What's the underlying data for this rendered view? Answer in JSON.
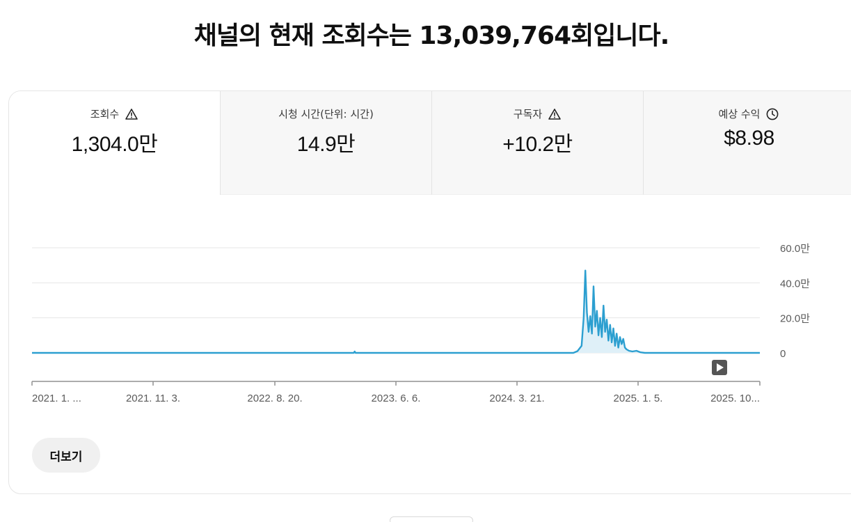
{
  "headline": "채널의 현재 조회수는 13,039,764회입니다.",
  "tabs": [
    {
      "label": "조회수",
      "value": "1,304.0만",
      "icon": "warning-icon"
    },
    {
      "label": "시청 시간(단위: 시간)",
      "value": "14.9만",
      "icon": ""
    },
    {
      "label": "구독자",
      "value": "+10.2만",
      "icon": "warning-icon"
    },
    {
      "label": "예상 수익",
      "value": "$8.98",
      "icon": "clock-icon"
    }
  ],
  "more_button": "더보기",
  "chart_data": {
    "type": "line",
    "y_tick_labels": [
      "60.0만",
      "40.0만",
      "20.0만",
      "0"
    ],
    "y_ticks": [
      600000,
      400000,
      200000,
      0
    ],
    "ylim": [
      0,
      600000
    ],
    "x_tick_labels": [
      "2021. 1. ...",
      "2021. 11. 3.",
      "2022. 8. 20.",
      "2023. 6. 6.",
      "2024. 3. 21.",
      "2025. 1. 5.",
      "2025. 10..."
    ],
    "xlim": [
      "2021-01-01",
      "2025-10-31"
    ],
    "series": [
      {
        "color": "#2c9fd0",
        "points": [
          [
            "2021-01-01",
            0
          ],
          [
            "2023-02-20",
            0
          ],
          [
            "2023-02-22",
            8000
          ],
          [
            "2023-02-24",
            0
          ],
          [
            "2024-08-05",
            0
          ],
          [
            "2024-08-15",
            10000
          ],
          [
            "2024-08-25",
            40000
          ],
          [
            "2024-08-30",
            200000
          ],
          [
            "2024-09-03",
            470000
          ],
          [
            "2024-09-07",
            230000
          ],
          [
            "2024-09-11",
            120000
          ],
          [
            "2024-09-15",
            210000
          ],
          [
            "2024-09-19",
            110000
          ],
          [
            "2024-09-23",
            380000
          ],
          [
            "2024-09-27",
            150000
          ],
          [
            "2024-10-01",
            240000
          ],
          [
            "2024-10-05",
            100000
          ],
          [
            "2024-10-09",
            200000
          ],
          [
            "2024-10-13",
            90000
          ],
          [
            "2024-10-17",
            270000
          ],
          [
            "2024-10-21",
            120000
          ],
          [
            "2024-10-25",
            190000
          ],
          [
            "2024-10-29",
            70000
          ],
          [
            "2024-11-02",
            160000
          ],
          [
            "2024-11-06",
            60000
          ],
          [
            "2024-11-10",
            140000
          ],
          [
            "2024-11-14",
            40000
          ],
          [
            "2024-11-18",
            110000
          ],
          [
            "2024-11-22",
            30000
          ],
          [
            "2024-11-26",
            90000
          ],
          [
            "2024-11-30",
            50000
          ],
          [
            "2024-12-04",
            80000
          ],
          [
            "2024-12-08",
            30000
          ],
          [
            "2024-12-12",
            20000
          ],
          [
            "2024-12-18",
            12000
          ],
          [
            "2024-12-26",
            8000
          ],
          [
            "2025-01-05",
            12000
          ],
          [
            "2025-01-15",
            3000
          ],
          [
            "2025-01-25",
            0
          ],
          [
            "2025-10-31",
            0
          ]
        ]
      }
    ],
    "grid": true,
    "legend": "none"
  },
  "colors": {
    "line": "#2c9fd0",
    "fill": "#dff0f8",
    "grid": "#e6e6e6",
    "axis": "#909090",
    "label": "#5a5a5a"
  }
}
